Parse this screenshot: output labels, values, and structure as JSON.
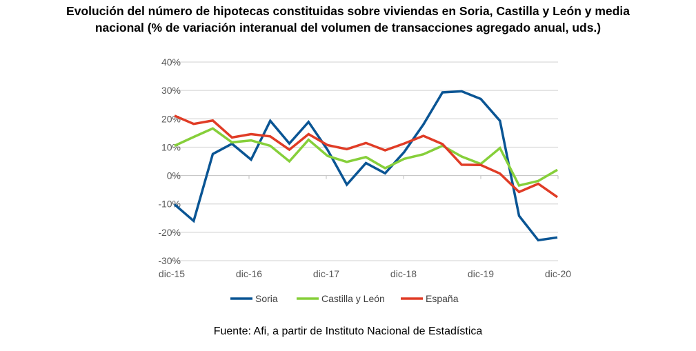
{
  "title_lines": [
    "Evolución del número de hipotecas constituidas sobre viviendas en Soria, Castilla y León y media",
    "nacional (% de variación interanual del volumen de transacciones agregado anual, uds.)"
  ],
  "source": "Fuente: Afi, a partir de Instituto Nacional de Estadística",
  "chart_data": {
    "type": "line",
    "title": "Evolución del número de hipotecas constituidas sobre viviendas en Soria, Castilla y León y media nacional (% de variación interanual del volumen de transacciones agregado anual, uds.)",
    "x_tick_labels": [
      "dic-15",
      "dic-16",
      "dic-17",
      "dic-18",
      "dic-19",
      "dic-20"
    ],
    "y_tick_labels": [
      "40%",
      "30%",
      "20%",
      "10%",
      "0%",
      "-10%",
      "-20%",
      "-30%"
    ],
    "ylim": [
      -30,
      40
    ],
    "y_unit": "%",
    "grid": "horizontal",
    "legend": "bottom",
    "series": [
      {
        "name": "Soria",
        "color": "#0a5594",
        "values": [
          -10.2,
          -16,
          7.6,
          11.2,
          5.6,
          19.3,
          11.3,
          18.9,
          9,
          -3.2,
          4.4,
          0.8,
          8.3,
          18,
          29.3,
          29.7,
          27,
          19.3,
          -14.2,
          -22.8,
          -21.8
        ]
      },
      {
        "name": "Castilla y León",
        "color": "#86cf3a",
        "values": [
          10.5,
          13.6,
          16.6,
          11.7,
          12.4,
          10.5,
          5,
          12.6,
          6.9,
          4.8,
          6.5,
          2.6,
          5.9,
          7.5,
          10.5,
          6.7,
          4.1,
          9.7,
          -3.5,
          -1.9,
          2
        ]
      },
      {
        "name": "España",
        "color": "#e03c26",
        "values": [
          21.1,
          18.2,
          19.4,
          13.4,
          14.6,
          13.8,
          9.1,
          14.6,
          10.7,
          9.3,
          11.5,
          8.9,
          11.3,
          14,
          11.1,
          3.8,
          3.7,
          0.7,
          -5.8,
          -2.9,
          -7.6
        ]
      }
    ]
  }
}
